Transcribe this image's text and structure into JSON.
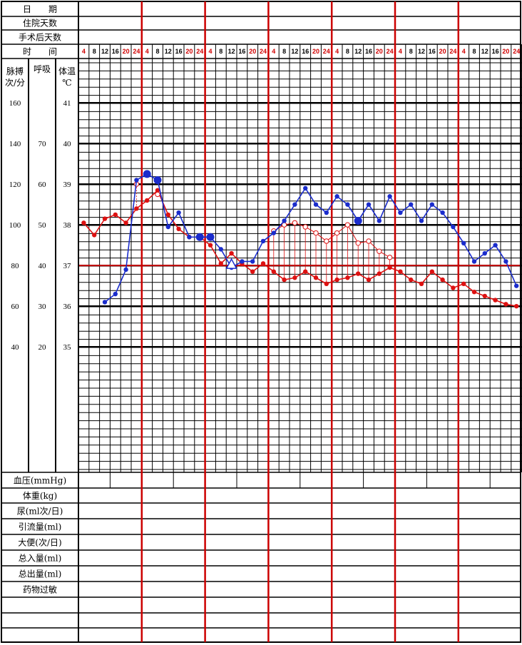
{
  "header_rows": [
    "日　　期",
    "住院天数",
    "手术后天数",
    "时　　间"
  ],
  "time_ticks": [
    "4",
    "8",
    "12",
    "16",
    "20",
    "24"
  ],
  "time_tick_colors": [
    "#d00000",
    "#000000",
    "#000000",
    "#000000",
    "#d00000",
    "#d00000"
  ],
  "axis_headers": {
    "pulse": [
      "脉搏",
      "次/分"
    ],
    "resp": "呼吸",
    "temp": [
      "体温",
      "℃"
    ]
  },
  "pulse_scale": [
    "160",
    "140",
    "120",
    "100",
    "80",
    "60",
    "40"
  ],
  "resp_scale": [
    "70",
    "60",
    "50",
    "40",
    "30",
    "20"
  ],
  "temp_scale": [
    "41",
    "40",
    "39",
    "38",
    "37",
    "36",
    "35"
  ],
  "bottom_rows": [
    "血压(mmHg)",
    "体重(kg)",
    "尿(ml次/日)",
    "引流量(ml)",
    "大便(次/日)",
    "总入量(ml)",
    "总出量(ml)",
    "药物过敏",
    "",
    "",
    ""
  ],
  "colors": {
    "temperature": "#1a2ccc",
    "pulse": "#dd1111",
    "day_divider": "#cc0000",
    "grid": "#000000"
  },
  "chart_data": {
    "type": "line",
    "x_unit": "slot",
    "temp_ylim": [
      34,
      42
    ],
    "series": [
      {
        "key": "temperature",
        "values": [
          [
            2.5,
            36.1
          ],
          [
            3.5,
            36.3
          ],
          [
            4.5,
            36.9
          ],
          [
            5.5,
            39.1
          ],
          [
            6.5,
            39.25
          ],
          [
            7.5,
            39.1
          ],
          [
            8.5,
            37.95
          ],
          [
            9.5,
            38.3
          ],
          [
            10.5,
            37.7
          ],
          [
            11.5,
            37.7
          ],
          [
            12.5,
            37.7
          ],
          [
            13.5,
            37.4
          ],
          [
            14.5,
            36.95
          ],
          [
            15.5,
            37.1
          ],
          [
            16.5,
            37.1
          ],
          [
            17.5,
            37.6
          ],
          [
            18.5,
            37.8
          ],
          [
            19.5,
            38.1
          ],
          [
            20.5,
            38.5
          ],
          [
            21.5,
            38.9
          ],
          [
            22.5,
            38.5
          ],
          [
            23.5,
            38.3
          ],
          [
            24.5,
            38.7
          ],
          [
            25.5,
            38.5
          ],
          [
            26.5,
            38.1
          ],
          [
            27.5,
            38.5
          ],
          [
            28.5,
            38.1
          ],
          [
            29.5,
            38.7
          ],
          [
            30.5,
            38.3
          ],
          [
            31.5,
            38.5
          ],
          [
            32.5,
            38.1
          ],
          [
            33.5,
            38.5
          ],
          [
            34.5,
            38.3
          ],
          [
            35.5,
            37.95
          ],
          [
            36.5,
            37.55
          ],
          [
            37.5,
            37.1
          ],
          [
            38.5,
            37.3
          ],
          [
            39.5,
            37.5
          ],
          [
            40.5,
            37.1
          ],
          [
            41.5,
            36.5
          ]
        ]
      },
      {
        "key": "pulse",
        "values": [
          [
            0.5,
            101
          ],
          [
            1.5,
            95
          ],
          [
            2.5,
            103
          ],
          [
            3.5,
            105
          ],
          [
            4.5,
            101
          ],
          [
            5.5,
            108
          ],
          [
            6.5,
            112
          ],
          [
            7.5,
            117
          ],
          [
            8.5,
            105
          ],
          [
            9.5,
            98
          ],
          [
            10.5,
            94
          ],
          [
            11.5,
            94
          ],
          [
            12.5,
            90
          ],
          [
            13.5,
            81
          ],
          [
            14.5,
            86
          ],
          [
            15.5,
            81
          ],
          [
            16.5,
            77
          ],
          [
            17.5,
            81
          ],
          [
            18.5,
            77
          ],
          [
            19.5,
            73
          ],
          [
            20.5,
            74
          ],
          [
            21.5,
            77
          ],
          [
            22.5,
            74
          ],
          [
            23.5,
            71
          ],
          [
            24.5,
            73
          ],
          [
            25.5,
            74
          ],
          [
            26.5,
            76
          ],
          [
            27.5,
            73
          ],
          [
            28.5,
            76
          ],
          [
            29.5,
            79
          ],
          [
            30.5,
            77
          ],
          [
            31.5,
            73
          ],
          [
            32.5,
            71
          ],
          [
            33.5,
            77
          ],
          [
            34.5,
            73
          ],
          [
            35.5,
            69
          ],
          [
            36.5,
            71
          ],
          [
            37.5,
            67
          ],
          [
            38.5,
            65
          ],
          [
            39.5,
            63
          ],
          [
            40.5,
            61
          ],
          [
            41.5,
            60
          ]
        ]
      },
      {
        "key": "pulse_fever",
        "values": [
          [
            5.5,
            120
          ],
          [
            7.5,
            115
          ],
          [
            18.5,
            97
          ],
          [
            19.5,
            100
          ],
          [
            20.5,
            101
          ],
          [
            21.5,
            99
          ],
          [
            22.5,
            96
          ],
          [
            23.5,
            92
          ],
          [
            24.5,
            96
          ],
          [
            25.5,
            100
          ],
          [
            26.5,
            91
          ],
          [
            27.5,
            92
          ],
          [
            28.5,
            87
          ],
          [
            29.5,
            84
          ]
        ]
      }
    ],
    "special_markers": [
      {
        "slot": 14.5,
        "temp": 37.0,
        "shape": "triangle"
      }
    ]
  }
}
